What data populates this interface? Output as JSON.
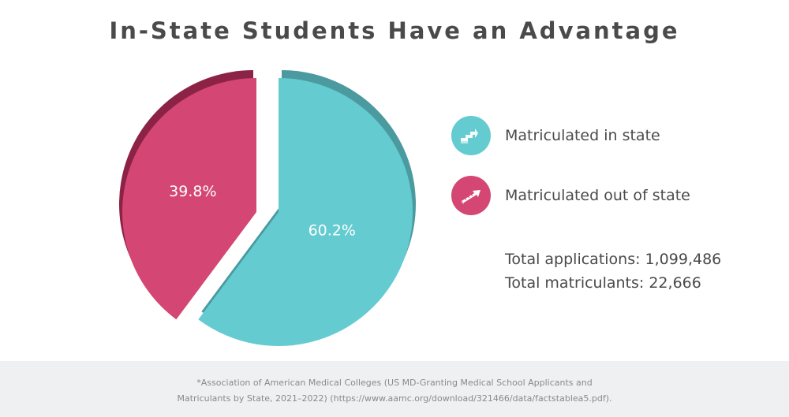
{
  "title": "In-State Students Have an Advantage",
  "colors": {
    "in_state": "#64cbd0",
    "in_state_shadow": "#4a9aa0",
    "out_state": "#d44674",
    "out_state_shadow": "#8c2246",
    "text": "#4a4a4a",
    "footer_bg": "#eef0f2"
  },
  "legend": [
    {
      "label": "Matriculated in state",
      "icon": "steps-arrow-icon",
      "color": "#64cbd0"
    },
    {
      "label": "Matriculated out of state",
      "icon": "diagonal-arrow-icon",
      "color": "#d44674"
    }
  ],
  "totals": {
    "applications": "Total applications: 1,099,486",
    "matriculants": "Total matriculants: 22,666"
  },
  "footnote": {
    "line1": "*Association of American Medical Colleges (US MD-Granting Medical School Applicants and",
    "line2": "Matriculants by State, 2021–2022) (https://www.aamc.org/download/321466/data/factstablea5.pdf)."
  },
  "chart_data": {
    "type": "pie",
    "title": "In-State Students Have an Advantage",
    "slices": [
      {
        "name": "Matriculated in state",
        "value": 60.2,
        "label": "60.2%",
        "color": "#64cbd0"
      },
      {
        "name": "Matriculated out of state",
        "value": 39.8,
        "label": "39.8%",
        "color": "#d44674"
      }
    ],
    "legend_position": "right"
  }
}
